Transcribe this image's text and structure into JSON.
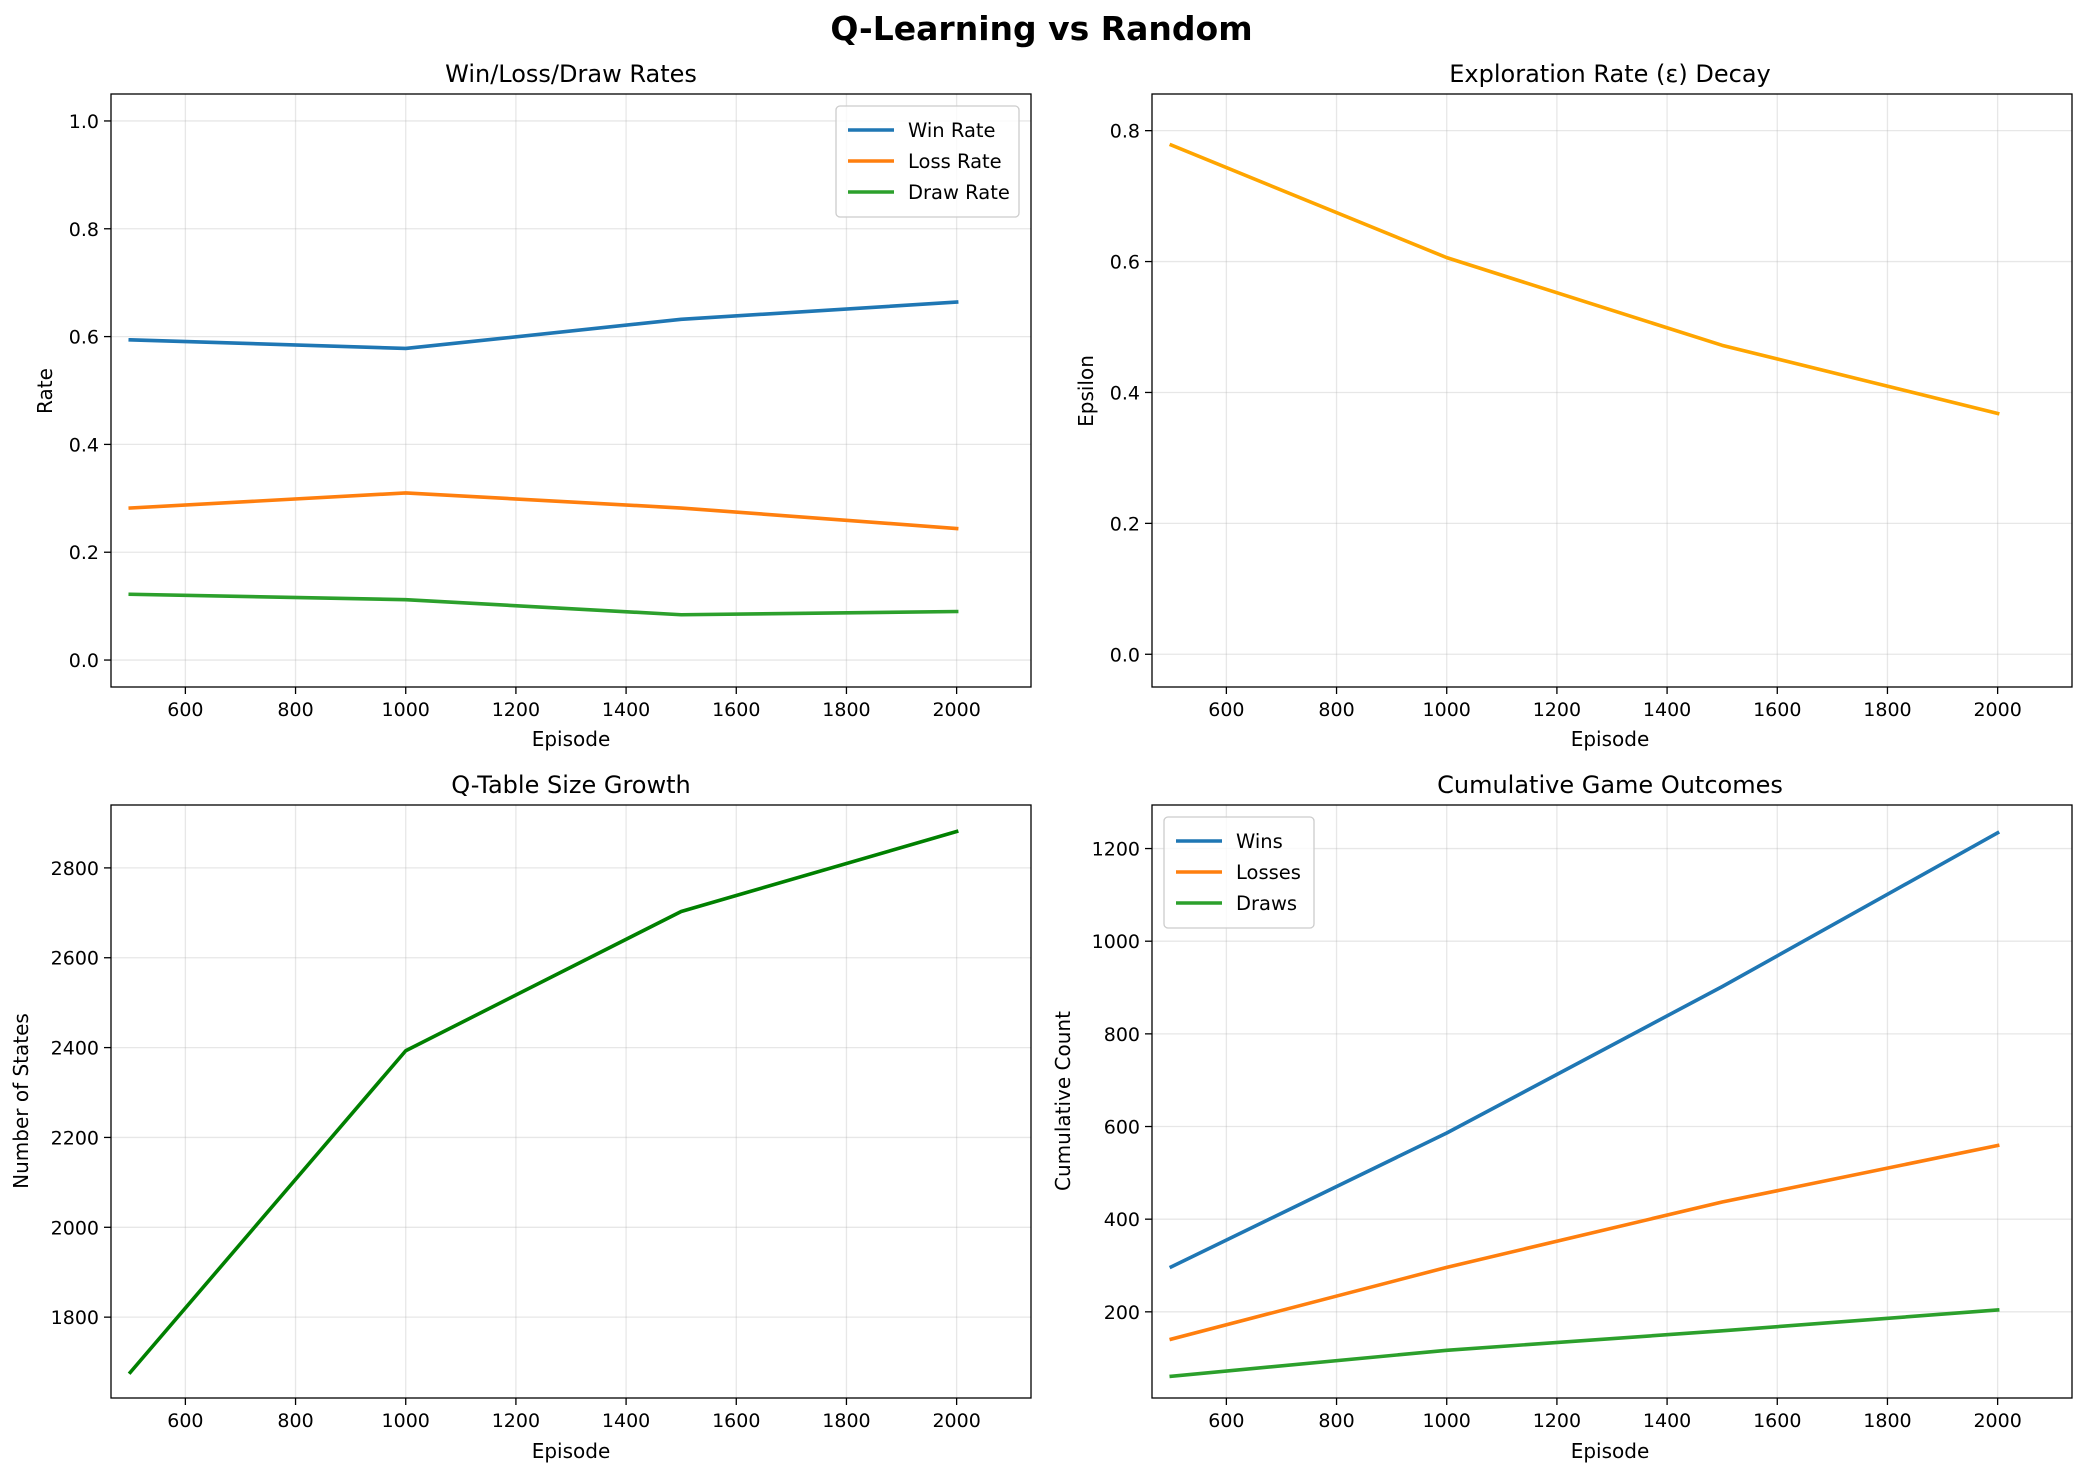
{
  "figure": {
    "suptitle": "Q-Learning vs Random"
  },
  "chart_data": [
    {
      "id": "rates",
      "type": "line",
      "title": "Win/Loss/Draw Rates",
      "xlabel": "Episode",
      "ylabel": "Rate",
      "x": [
        500,
        1000,
        1500,
        2000
      ],
      "xlim": [
        465,
        2135
      ],
      "ylim": [
        -0.05,
        1.05
      ],
      "xticks": [
        600,
        800,
        1000,
        1200,
        1400,
        1600,
        1800,
        2000
      ],
      "yticks": [
        0.0,
        0.2,
        0.4,
        0.6,
        0.8,
        1.0
      ],
      "ytick_decimals": 1,
      "grid": true,
      "legend": "top-right",
      "series": [
        {
          "name": "Win Rate",
          "color": "#1f77b4",
          "values": [
            0.594,
            0.578,
            0.632,
            0.664
          ]
        },
        {
          "name": "Loss Rate",
          "color": "#ff7f0e",
          "values": [
            0.282,
            0.31,
            0.282,
            0.244
          ]
        },
        {
          "name": "Draw Rate",
          "color": "#2ca02c",
          "values": [
            0.122,
            0.112,
            0.084,
            0.09
          ]
        }
      ]
    },
    {
      "id": "epsilon",
      "type": "line",
      "title": "Exploration Rate (ε) Decay",
      "xlabel": "Episode",
      "ylabel": "Epsilon",
      "x": [
        500,
        1000,
        1500,
        2000
      ],
      "xlim": [
        465,
        2135
      ],
      "ylim": [
        -0.05,
        0.856
      ],
      "xticks": [
        600,
        800,
        1000,
        1200,
        1400,
        1600,
        1800,
        2000
      ],
      "yticks": [
        0.0,
        0.2,
        0.4,
        0.6,
        0.8
      ],
      "ytick_decimals": 1,
      "grid": true,
      "legend": "none",
      "series": [
        {
          "color": "#ffa500",
          "values": [
            0.778,
            0.606,
            0.472,
            0.368
          ]
        }
      ]
    },
    {
      "id": "qtable",
      "type": "line",
      "title": "Q-Table Size Growth",
      "xlabel": "Episode",
      "ylabel": "Number of States",
      "x": [
        500,
        1000,
        1500,
        2000
      ],
      "xlim": [
        465,
        2135
      ],
      "ylim": [
        1620,
        2940
      ],
      "xticks": [
        600,
        800,
        1000,
        1200,
        1400,
        1600,
        1800,
        2000
      ],
      "yticks": [
        1800,
        2000,
        2200,
        2400,
        2600,
        2800
      ],
      "ytick_decimals": 0,
      "grid": true,
      "legend": "none",
      "series": [
        {
          "color": "#008000",
          "values": [
            1677,
            2393,
            2703,
            2881
          ]
        }
      ]
    },
    {
      "id": "cumulative",
      "type": "line",
      "title": "Cumulative Game Outcomes",
      "xlabel": "Episode",
      "ylabel": "Cumulative Count",
      "x": [
        500,
        1000,
        1500,
        2000
      ],
      "xlim": [
        465,
        2135
      ],
      "ylim": [
        14,
        1294
      ],
      "xticks": [
        600,
        800,
        1000,
        1200,
        1400,
        1600,
        1800,
        2000
      ],
      "yticks": [
        200,
        400,
        600,
        800,
        1000,
        1200
      ],
      "ytick_decimals": 0,
      "grid": true,
      "legend": "top-left",
      "series": [
        {
          "name": "Wins",
          "color": "#1f77b4",
          "values": [
            297,
            586,
            902,
            1234
          ]
        },
        {
          "name": "Losses",
          "color": "#ff7f0e",
          "values": [
            141,
            296,
            437,
            559
          ]
        },
        {
          "name": "Draws",
          "color": "#2ca02c",
          "values": [
            61,
            117,
            159,
            204
          ]
        }
      ]
    }
  ]
}
